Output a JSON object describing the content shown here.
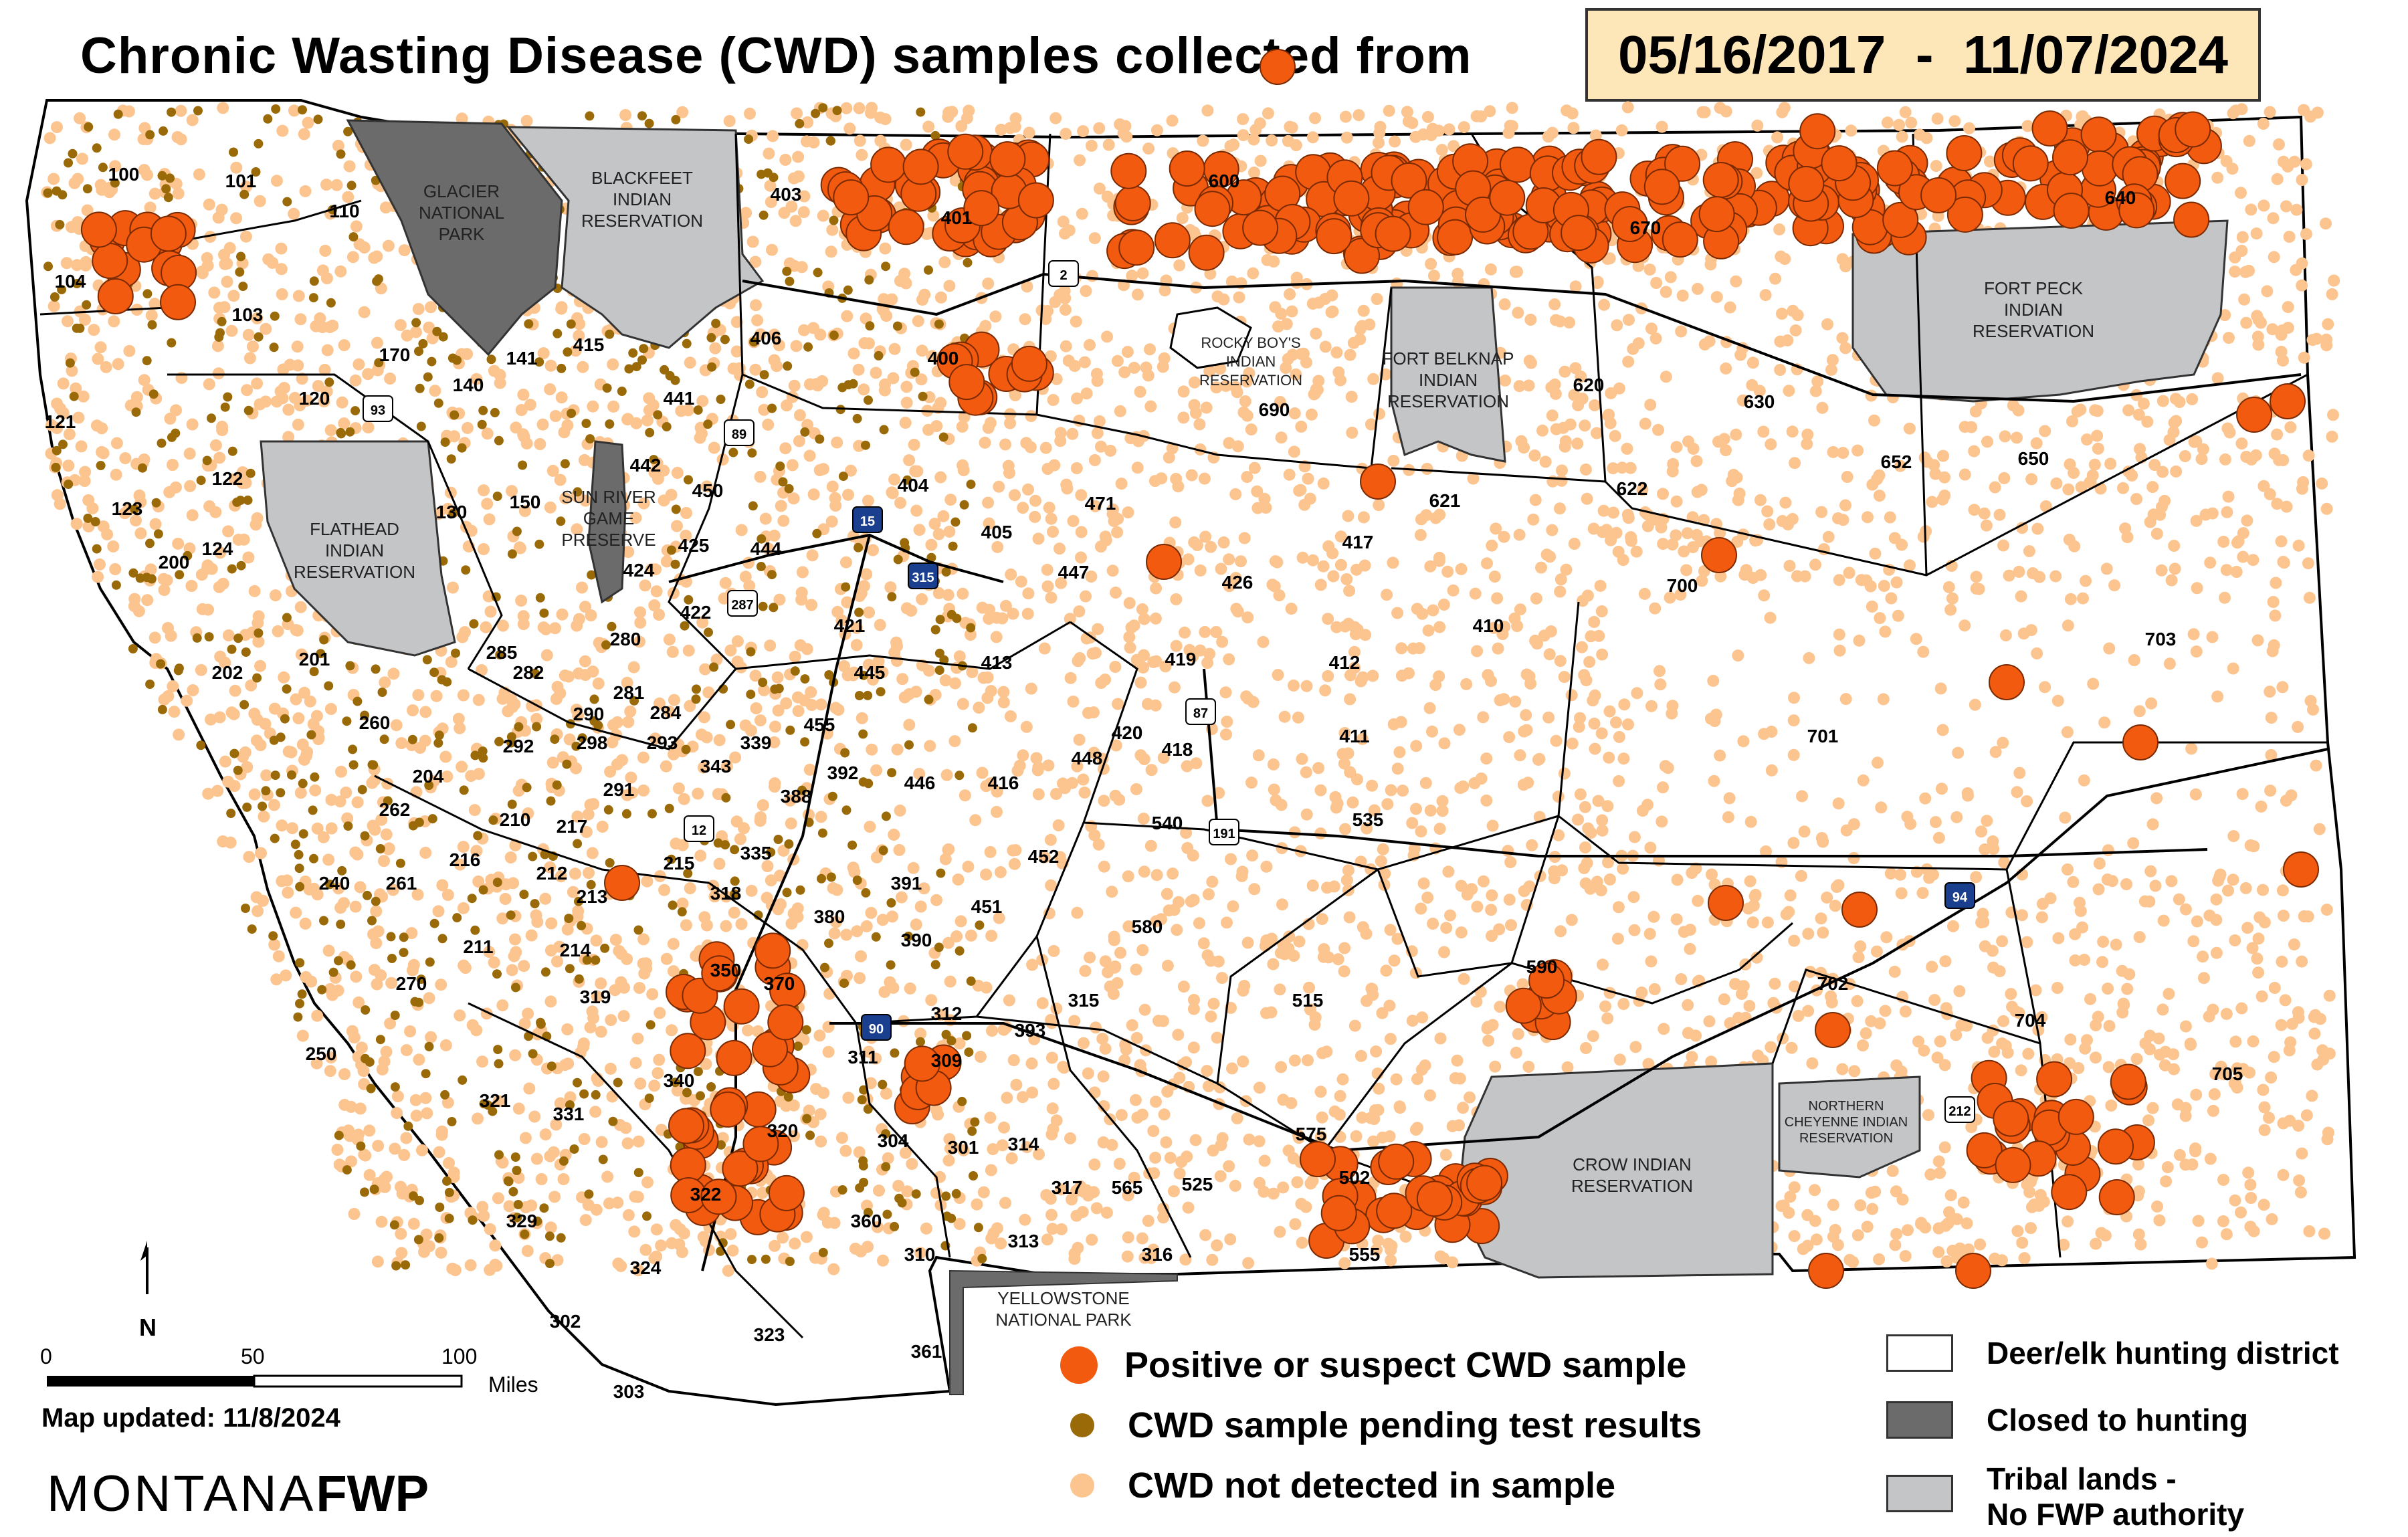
{
  "title": "Chronic Wasting Disease (CWD) samples collected from",
  "date_range": "05/16/2017  -  11/07/2024",
  "map_updated": "Map updated: 11/8/2024",
  "brand_light": "MONTANA",
  "brand_bold": "FWP",
  "north_label": "N",
  "scale": {
    "ticks": [
      "0",
      "50",
      "100"
    ],
    "unit": "Miles"
  },
  "colors": {
    "positive": "#f25a10",
    "pending": "#9a6a08",
    "not_detected": "#fcc48f",
    "closed": "#6b6b6b",
    "tribal": "#c4c5c7",
    "district": "#ffffff"
  },
  "legend_samples": [
    {
      "label": "Positive or suspect CWD sample",
      "color": "#f25a10"
    },
    {
      "label": "CWD sample pending test results",
      "color": "#9a6a08"
    },
    {
      "label": "CWD not detected in sample",
      "color": "#fcc48f"
    }
  ],
  "legend_areas": [
    {
      "label": "Deer/elk hunting district",
      "color": "#ffffff"
    },
    {
      "label": "Closed to hunting",
      "color": "#6b6b6b"
    },
    {
      "label": "Tribal lands -\nNo FWP authority",
      "color": "#c4c5c7"
    }
  ],
  "special_areas": {
    "glacier": "GLACIER\nNATIONAL\nPARK",
    "blackfeet": "BLACKFEET\nINDIAN\nRESERVATION",
    "flathead": "FLATHEAD\nINDIAN\nRESERVATION",
    "sun_river": "SUN RIVER\nGAME\nPRESERVE",
    "rocky_boy": "ROCKY BOY'S\nINDIAN\nRESERVATION",
    "fort_belknap": "FORT BELKNAP\nINDIAN\nRESERVATION",
    "fort_peck": "FORT PECK\nINDIAN\nRESERVATION",
    "crow": "CROW INDIAN\nRESERVATION",
    "northern_cheyenne": "NORTHERN\nCHEYENNE INDIAN\nRESERVATION",
    "yellowstone": "YELLOWSTONE\nNATIONAL PARK"
  },
  "highway_shields": [
    "2",
    "89",
    "15",
    "315",
    "93",
    "287",
    "87",
    "191",
    "12",
    "90",
    "94",
    "212"
  ],
  "hunting_districts": [
    "100",
    "101",
    "103",
    "104",
    "110",
    "120",
    "121",
    "122",
    "123",
    "124",
    "130",
    "140",
    "141",
    "150",
    "170",
    "200",
    "201",
    "202",
    "204",
    "210",
    "211",
    "212",
    "213",
    "214",
    "215",
    "216",
    "217",
    "240",
    "250",
    "260",
    "261",
    "262",
    "270",
    "280",
    "281",
    "282",
    "284",
    "285",
    "290",
    "291",
    "292",
    "293",
    "298",
    "301",
    "302",
    "303",
    "304",
    "309",
    "310",
    "311",
    "312",
    "313",
    "314",
    "315",
    "316",
    "317",
    "318",
    "319",
    "320",
    "321",
    "322",
    "323",
    "324",
    "329",
    "331",
    "335",
    "339",
    "340",
    "343",
    "350",
    "360",
    "361",
    "370",
    "380",
    "388",
    "390",
    "391",
    "392",
    "393",
    "400",
    "401",
    "403",
    "404",
    "405",
    "406",
    "410",
    "411",
    "412",
    "413",
    "415",
    "416",
    "417",
    "418",
    "419",
    "420",
    "421",
    "422",
    "424",
    "425",
    "426",
    "441",
    "442",
    "444",
    "445",
    "446",
    "447",
    "448",
    "450",
    "451",
    "452",
    "455",
    "471",
    "502",
    "515",
    "525",
    "535",
    "540",
    "555",
    "565",
    "575",
    "580",
    "590",
    "600",
    "620",
    "621",
    "622",
    "630",
    "640",
    "650",
    "652",
    "670",
    "690",
    "700",
    "701",
    "702",
    "703",
    "704",
    "705"
  ]
}
